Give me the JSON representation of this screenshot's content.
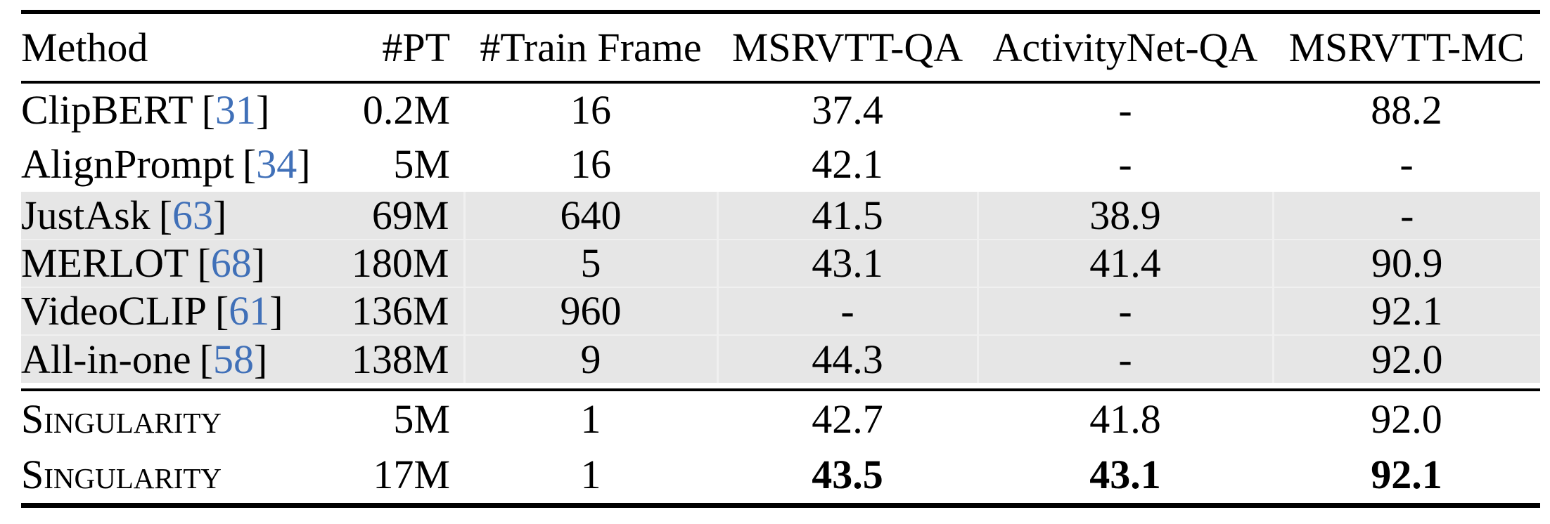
{
  "table": {
    "citation": {
      "open": "[",
      "close": "]"
    },
    "colors": {
      "citation_link": "#4070b8",
      "shaded_row": "#e6e6e6"
    },
    "columns": [
      {
        "label": "Method"
      },
      {
        "label": "#PT"
      },
      {
        "label": "#Train Frame"
      },
      {
        "label": "MSRVTT-QA"
      },
      {
        "label": "ActivityNet-QA"
      },
      {
        "label": "MSRVTT-MC"
      }
    ],
    "rows": [
      {
        "method": "ClipBERT",
        "ref": "31",
        "pt": "0.2M",
        "train_frame": "16",
        "msrvtt_qa": "37.4",
        "activitynet_qa": "-",
        "msrvtt_mc": "88.2",
        "section": "baseline",
        "shaded": false,
        "smallcaps": false,
        "bold_metrics": false
      },
      {
        "method": "AlignPrompt",
        "ref": "34",
        "pt": "5M",
        "train_frame": "16",
        "msrvtt_qa": "42.1",
        "activitynet_qa": "-",
        "msrvtt_mc": "-",
        "section": "baseline",
        "shaded": false,
        "smallcaps": false,
        "bold_metrics": false
      },
      {
        "method": "JustAsk",
        "ref": "63",
        "pt": "69M",
        "train_frame": "640",
        "msrvtt_qa": "41.5",
        "activitynet_qa": "38.9",
        "msrvtt_mc": "-",
        "section": "baseline",
        "shaded": true,
        "smallcaps": false,
        "bold_metrics": false
      },
      {
        "method": "MERLOT",
        "ref": "68",
        "pt": "180M",
        "train_frame": "5",
        "msrvtt_qa": "43.1",
        "activitynet_qa": "41.4",
        "msrvtt_mc": "90.9",
        "section": "baseline",
        "shaded": true,
        "smallcaps": false,
        "bold_metrics": false
      },
      {
        "method": "VideoCLIP",
        "ref": "61",
        "pt": "136M",
        "train_frame": "960",
        "msrvtt_qa": "-",
        "activitynet_qa": "-",
        "msrvtt_mc": "92.1",
        "section": "baseline",
        "shaded": true,
        "smallcaps": false,
        "bold_metrics": false
      },
      {
        "method": "All-in-one",
        "ref": "58",
        "pt": "138M",
        "train_frame": "9",
        "msrvtt_qa": "44.3",
        "activitynet_qa": "-",
        "msrvtt_mc": "92.0",
        "section": "baseline",
        "shaded": true,
        "smallcaps": false,
        "bold_metrics": false
      },
      {
        "method": "Singularity",
        "ref": null,
        "pt": "5M",
        "train_frame": "1",
        "msrvtt_qa": "42.7",
        "activitynet_qa": "41.8",
        "msrvtt_mc": "92.0",
        "section": "singularity",
        "shaded": false,
        "smallcaps": true,
        "bold_metrics": false
      },
      {
        "method": "Singularity",
        "ref": null,
        "pt": "17M",
        "train_frame": "1",
        "msrvtt_qa": "43.5",
        "activitynet_qa": "43.1",
        "msrvtt_mc": "92.1",
        "section": "singularity",
        "shaded": false,
        "smallcaps": true,
        "bold_metrics": true
      }
    ]
  }
}
